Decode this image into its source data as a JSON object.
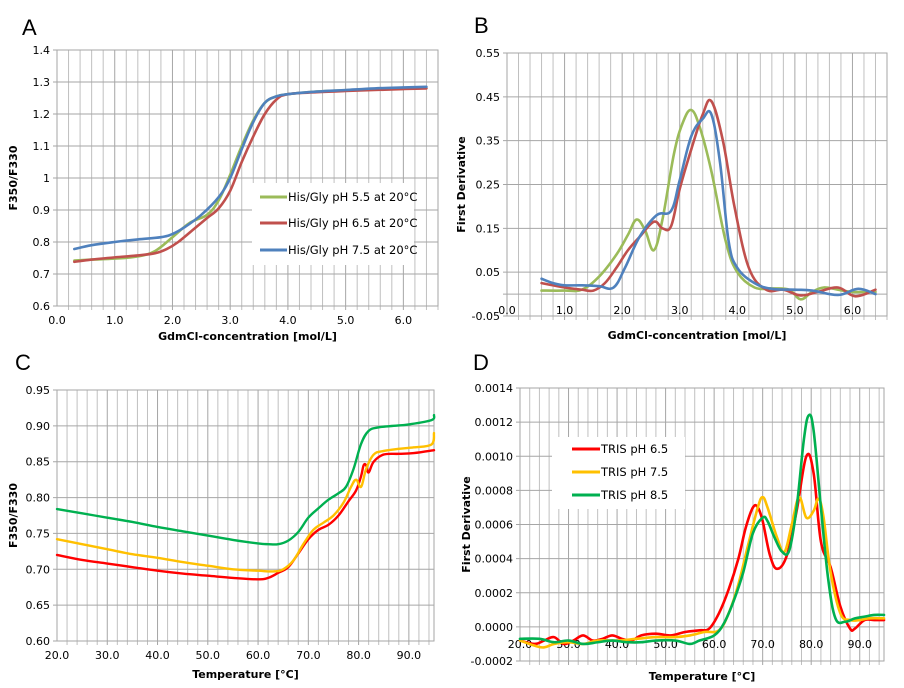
{
  "figure": {
    "panels": [
      "A",
      "B",
      "C",
      "D"
    ]
  },
  "chart_data": [
    {
      "id": "A",
      "type": "line",
      "panel_label": "A",
      "title": "",
      "xlabel": "GdmCl-concentration [mol/L]",
      "ylabel": "F350/F330",
      "xlim": [
        0.0,
        6.6
      ],
      "ylim": [
        0.6,
        1.4
      ],
      "x_ticks": [
        "0.0",
        "1.0",
        "2.0",
        "3.0",
        "4.0",
        "5.0",
        "6.0"
      ],
      "x_tick_values": [
        0,
        1,
        2,
        3,
        4,
        5,
        6
      ],
      "y_ticks": [
        "0.6",
        "0.7",
        "0.8",
        "0.9",
        "1",
        "1.1",
        "1.2",
        "1.3",
        "1.4"
      ],
      "y_tick_values": [
        0.6,
        0.7,
        0.8,
        0.9,
        1.0,
        1.1,
        1.2,
        1.3,
        1.4
      ],
      "x_minor_step": 0.2,
      "grid": true,
      "legend_position": "center-right",
      "series": [
        {
          "name": "His/Gly pH 5.5 at 20°C",
          "color": "#9bbb59",
          "x": [
            0.3,
            0.6,
            1.0,
            1.4,
            1.7,
            2.0,
            2.3,
            2.6,
            2.8,
            3.0,
            3.2,
            3.4,
            3.6,
            3.8,
            4.0,
            4.5,
            5.0,
            5.5,
            6.0,
            6.4
          ],
          "y": [
            0.742,
            0.745,
            0.748,
            0.755,
            0.772,
            0.815,
            0.86,
            0.885,
            0.93,
            1.01,
            1.1,
            1.18,
            1.235,
            1.255,
            1.262,
            1.27,
            1.274,
            1.277,
            1.279,
            1.281
          ]
        },
        {
          "name": "His/Gly pH 6.5 at 20°C",
          "color": "#c0504d",
          "x": [
            0.3,
            0.6,
            1.0,
            1.4,
            1.7,
            1.9,
            2.1,
            2.4,
            2.6,
            2.8,
            3.0,
            3.2,
            3.4,
            3.6,
            3.8,
            4.0,
            4.5,
            5.0,
            5.5,
            6.0,
            6.4
          ],
          "y": [
            0.738,
            0.745,
            0.752,
            0.758,
            0.765,
            0.778,
            0.8,
            0.845,
            0.875,
            0.905,
            0.96,
            1.05,
            1.13,
            1.2,
            1.245,
            1.262,
            1.268,
            1.272,
            1.275,
            1.278,
            1.28
          ]
        },
        {
          "name": "His/Gly pH 7.5 at 20°C",
          "color": "#4f81bd",
          "x": [
            0.3,
            0.6,
            1.0,
            1.4,
            1.8,
            2.0,
            2.2,
            2.5,
            2.8,
            3.0,
            3.2,
            3.4,
            3.6,
            3.8,
            4.0,
            4.5,
            5.0,
            5.5,
            6.0,
            6.4
          ],
          "y": [
            0.778,
            0.79,
            0.8,
            0.808,
            0.815,
            0.825,
            0.845,
            0.885,
            0.94,
            1.0,
            1.09,
            1.175,
            1.235,
            1.255,
            1.262,
            1.27,
            1.275,
            1.28,
            1.283,
            1.285
          ]
        }
      ]
    },
    {
      "id": "B",
      "type": "line",
      "panel_label": "B",
      "title": "",
      "xlabel": "GdmCl-concentration [mol/L]",
      "ylabel": "First Derivative",
      "xlim": [
        0.0,
        6.6
      ],
      "ylim": [
        -0.05,
        0.55
      ],
      "x_ticks": [
        "0.0",
        "1.0",
        "2.0",
        "3.0",
        "4.0",
        "5.0",
        "6.0"
      ],
      "x_tick_values": [
        0,
        1,
        2,
        3,
        4,
        5,
        6
      ],
      "x_tick_label_at": 0.0,
      "y_ticks": [
        "-0.05",
        "0.05",
        "0.15",
        "0.25",
        "0.35",
        "0.45",
        "0.55"
      ],
      "y_tick_values": [
        -0.05,
        0.05,
        0.15,
        0.25,
        0.35,
        0.45,
        0.55
      ],
      "y_minor_values": [
        0.0
      ],
      "x_minor_step": 0.2,
      "grid": true,
      "legend_position": "none",
      "series": [
        {
          "name": "His/Gly pH 5.5 at 20°C",
          "color": "#9bbb59",
          "x": [
            0.6,
            1.0,
            1.3,
            1.6,
            1.9,
            2.1,
            2.25,
            2.4,
            2.55,
            2.7,
            2.9,
            3.05,
            3.2,
            3.35,
            3.55,
            3.8,
            4.0,
            4.3,
            4.6,
            4.9,
            5.1,
            5.3,
            5.5,
            5.75,
            6.0,
            6.4
          ],
          "y": [
            0.008,
            0.008,
            0.01,
            0.04,
            0.09,
            0.135,
            0.17,
            0.145,
            0.1,
            0.17,
            0.32,
            0.39,
            0.42,
            0.38,
            0.28,
            0.12,
            0.05,
            0.015,
            0.013,
            0.01,
            -0.012,
            0.005,
            0.015,
            0.01,
            0.005,
            0.005
          ]
        },
        {
          "name": "His/Gly pH 6.5 at 20°C",
          "color": "#c0504d",
          "x": [
            0.6,
            1.0,
            1.3,
            1.5,
            1.7,
            1.9,
            2.1,
            2.3,
            2.55,
            2.7,
            2.85,
            3.0,
            3.2,
            3.4,
            3.55,
            3.75,
            3.95,
            4.2,
            4.5,
            4.8,
            5.1,
            5.4,
            5.75,
            6.05,
            6.4
          ],
          "y": [
            0.025,
            0.015,
            0.01,
            0.008,
            0.025,
            0.06,
            0.1,
            0.13,
            0.165,
            0.15,
            0.155,
            0.24,
            0.33,
            0.41,
            0.44,
            0.35,
            0.2,
            0.06,
            0.01,
            0.01,
            -0.003,
            0.005,
            0.015,
            -0.005,
            0.01
          ]
        },
        {
          "name": "His/Gly pH 7.5 at 20°C",
          "color": "#4f81bd",
          "x": [
            0.6,
            0.8,
            1.0,
            1.3,
            1.6,
            1.85,
            2.05,
            2.3,
            2.6,
            2.85,
            3.0,
            3.2,
            3.4,
            3.55,
            3.7,
            3.85,
            4.0,
            4.3,
            4.6,
            5.0,
            5.3,
            5.75,
            6.1,
            6.4
          ],
          "y": [
            0.035,
            0.025,
            0.02,
            0.02,
            0.018,
            0.015,
            0.06,
            0.13,
            0.18,
            0.19,
            0.26,
            0.36,
            0.4,
            0.41,
            0.3,
            0.12,
            0.06,
            0.025,
            0.012,
            0.01,
            0.008,
            -0.002,
            0.012,
            0.0
          ]
        }
      ]
    },
    {
      "id": "C",
      "type": "line",
      "panel_label": "C",
      "title": "",
      "xlabel": "Temperature [°C]",
      "ylabel": "F350/F330",
      "xlim": [
        20.0,
        95.0
      ],
      "ylim": [
        0.6,
        0.95
      ],
      "x_ticks": [
        "20.0",
        "30.0",
        "40.0",
        "50.0",
        "60.0",
        "70.0",
        "80.0",
        "90.0"
      ],
      "x_tick_values": [
        20,
        30,
        40,
        50,
        60,
        70,
        80,
        90
      ],
      "y_ticks": [
        "0.60",
        "0.65",
        "0.70",
        "0.75",
        "0.80",
        "0.85",
        "0.90",
        "0.95"
      ],
      "y_tick_values": [
        0.6,
        0.65,
        0.7,
        0.75,
        0.8,
        0.85,
        0.9,
        0.95
      ],
      "x_minor_step": 2,
      "grid": true,
      "legend_position": "none",
      "series": [
        {
          "name": "TRIS pH 6.5",
          "color": "#ff0000",
          "x": [
            20,
            25,
            30,
            35,
            40,
            45,
            50,
            55,
            60,
            62,
            64,
            66,
            68,
            70,
            72,
            74,
            76,
            78,
            79.5,
            80.5,
            81,
            81.5,
            82,
            83,
            85,
            88,
            91,
            95
          ],
          "y": [
            0.72,
            0.713,
            0.708,
            0.703,
            0.698,
            0.694,
            0.691,
            0.688,
            0.686,
            0.688,
            0.695,
            0.703,
            0.722,
            0.742,
            0.755,
            0.762,
            0.775,
            0.795,
            0.81,
            0.83,
            0.845,
            0.845,
            0.835,
            0.85,
            0.86,
            0.861,
            0.862,
            0.866
          ]
        },
        {
          "name": "TRIS pH 7.5",
          "color": "#ffc000",
          "x": [
            20,
            25,
            30,
            35,
            40,
            45,
            50,
            55,
            60,
            63,
            65,
            67,
            69,
            71,
            73,
            75,
            77,
            78.5,
            79.5,
            80.5,
            81.5,
            83,
            85,
            88,
            91,
            94.5,
            95
          ],
          "y": [
            0.742,
            0.735,
            0.728,
            0.721,
            0.716,
            0.71,
            0.705,
            0.7,
            0.698,
            0.697,
            0.7,
            0.712,
            0.735,
            0.755,
            0.765,
            0.775,
            0.793,
            0.815,
            0.825,
            0.815,
            0.84,
            0.86,
            0.865,
            0.868,
            0.87,
            0.874,
            0.89
          ]
        },
        {
          "name": "TRIS pH 8.5",
          "color": "#00b050",
          "x": [
            20,
            25,
            30,
            35,
            40,
            45,
            50,
            55,
            60,
            62,
            64,
            66,
            68,
            70,
            72,
            74,
            76,
            77.5,
            79,
            80.5,
            82,
            84,
            87,
            90,
            94.5,
            95
          ],
          "y": [
            0.784,
            0.778,
            0.772,
            0.766,
            0.759,
            0.753,
            0.747,
            0.741,
            0.736,
            0.735,
            0.735,
            0.74,
            0.752,
            0.772,
            0.785,
            0.797,
            0.806,
            0.815,
            0.84,
            0.875,
            0.893,
            0.898,
            0.9,
            0.902,
            0.908,
            0.915
          ]
        }
      ]
    },
    {
      "id": "D",
      "type": "line",
      "panel_label": "D",
      "title": "",
      "xlabel": "Temperature [°C]",
      "ylabel": "First Derivative",
      "xlim": [
        20.0,
        95.0
      ],
      "ylim": [
        -0.0002,
        0.0014
      ],
      "x_ticks": [
        "20.0",
        "30.0",
        "40.0",
        "50.0",
        "60.0",
        "70.0",
        "80.0",
        "90.0"
      ],
      "x_tick_values": [
        20,
        30,
        40,
        50,
        60,
        70,
        80,
        90
      ],
      "x_tick_label_at": 0.0,
      "y_ticks": [
        "-0.0002",
        "0.0000",
        "0.0002",
        "0.0004",
        "0.0006",
        "0.0008",
        "0.0010",
        "0.0012",
        "0.0014"
      ],
      "y_tick_values": [
        -0.0002,
        0.0,
        0.0002,
        0.0004,
        0.0006,
        0.0008,
        0.001,
        0.0012,
        0.0014
      ],
      "x_minor_step": 2,
      "grid": true,
      "legend_position": "top-left",
      "series": [
        {
          "name": "TRIS pH 6.5",
          "color": "#ff0000",
          "x": [
            20,
            23,
            25,
            27,
            29,
            31,
            33,
            35,
            37,
            39,
            41,
            43,
            45,
            48,
            51,
            54,
            57,
            59,
            61,
            63,
            65,
            66.5,
            68,
            69,
            70,
            71.5,
            73,
            75,
            77,
            79,
            80.5,
            82,
            84,
            86,
            88,
            89,
            91,
            93,
            95
          ],
          "y": [
            -8e-05,
            -0.0001,
            -8e-05,
            -6e-05,
            -0.0001,
            -8e-05,
            -5e-05,
            -8e-05,
            -7e-05,
            -5e-05,
            -7e-05,
            -8e-05,
            -5e-05,
            -4e-05,
            -5e-05,
            -3e-05,
            -2e-05,
            -1e-05,
            8e-05,
            0.00022,
            0.0004,
            0.00058,
            0.0007,
            0.0007,
            0.00062,
            0.00042,
            0.00034,
            0.00042,
            0.00068,
            0.001,
            0.0009,
            0.0005,
            0.00035,
            0.00012,
            -1e-05,
            -1e-05,
            4e-05,
            4e-05,
            4e-05
          ]
        },
        {
          "name": "TRIS pH 7.5",
          "color": "#ffc000",
          "x": [
            20,
            23,
            25,
            27,
            30,
            33,
            36,
            40,
            44,
            48,
            52,
            55,
            58,
            61,
            63,
            65,
            67,
            69,
            70,
            71,
            73,
            74.5,
            76,
            77.5,
            79,
            80.5,
            81.5,
            82.5,
            84,
            86,
            88,
            90,
            92,
            95
          ],
          "y": [
            -8e-05,
            -0.00011,
            -0.00012,
            -0.0001,
            -9e-05,
            -0.0001,
            -8e-05,
            -8e-05,
            -7e-05,
            -6e-05,
            -6e-05,
            -5e-05,
            -3e-05,
            -2e-05,
            8e-05,
            0.00025,
            0.00048,
            0.0007,
            0.00076,
            0.0007,
            0.00052,
            0.00044,
            0.0006,
            0.00076,
            0.00064,
            0.00068,
            0.00075,
            0.00065,
            0.00032,
            8e-05,
            4e-05,
            4e-05,
            5e-05,
            5e-05
          ]
        },
        {
          "name": "TRIS pH 8.5",
          "color": "#00b050",
          "x": [
            20,
            24,
            27,
            30,
            33,
            36,
            39,
            42,
            45,
            48,
            52,
            55,
            57,
            60,
            62,
            64,
            66,
            68,
            70,
            71,
            72.5,
            74,
            75.5,
            77,
            78.5,
            79.5,
            80.5,
            82,
            83.5,
            85,
            87,
            89,
            91,
            93,
            95
          ],
          "y": [
            -7e-05,
            -7e-05,
            -9e-05,
            -8e-05,
            -0.0001,
            -9e-05,
            -8e-05,
            -9e-05,
            -9e-05,
            -8e-05,
            -8e-05,
            -0.0001,
            -8e-05,
            -5e-05,
            2e-05,
            0.00015,
            0.00032,
            0.00055,
            0.00064,
            0.00062,
            0.00052,
            0.00044,
            0.00045,
            0.0007,
            0.0011,
            0.00124,
            0.00115,
            0.0007,
            0.00028,
            5e-05,
            3e-05,
            5e-05,
            6e-05,
            7e-05,
            7e-05
          ]
        }
      ]
    }
  ]
}
